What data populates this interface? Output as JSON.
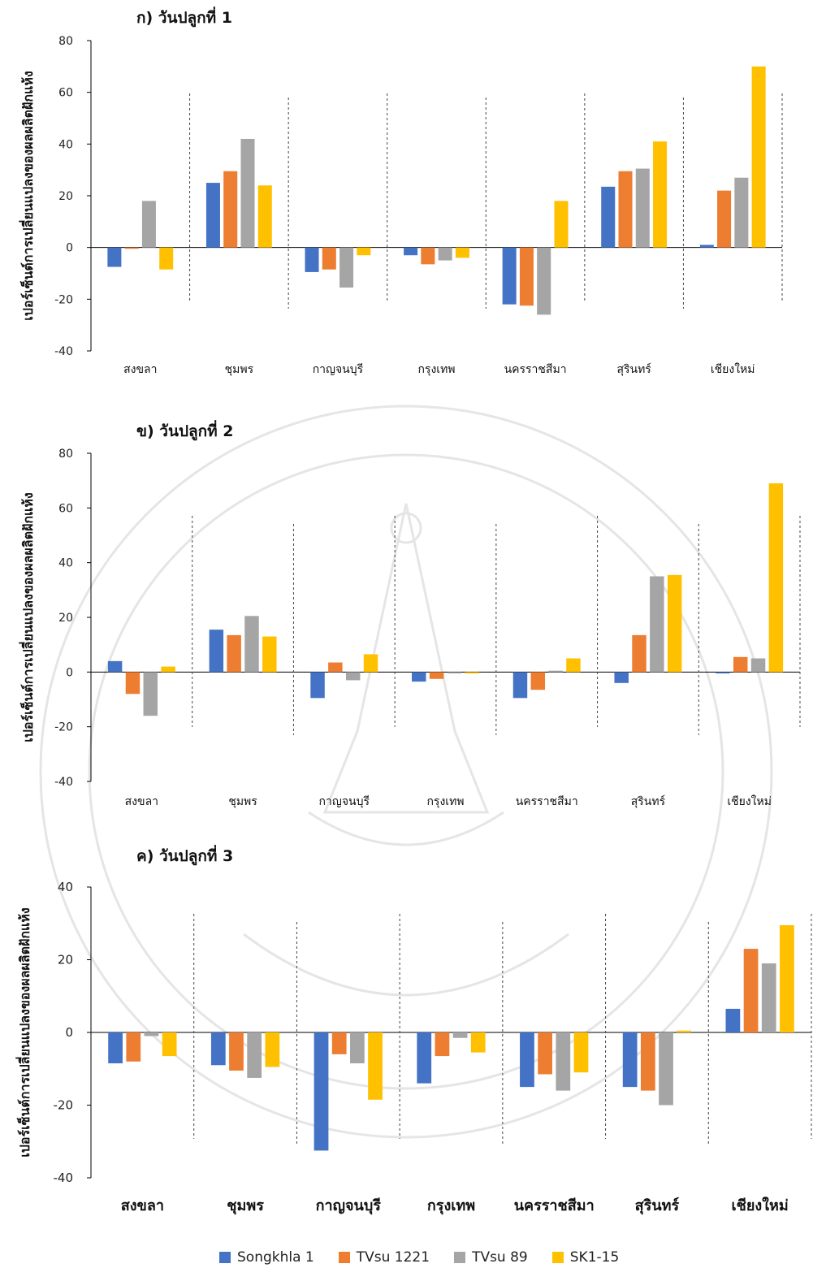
{
  "chart_data": [
    {
      "type": "bar",
      "title": "ก) วันปลูกที่ 1",
      "ylabel": "เปอร์เซ็นต์การเปลี่ยนแปลงของผลผลิตฝักแห้ง",
      "ylim": [
        -40,
        80
      ],
      "yticks": [
        80,
        60,
        40,
        20,
        0,
        -20,
        -40
      ],
      "categories": [
        "สงขลา",
        "ชุมพร",
        "กาญจนบุรี",
        "กรุงเทพ",
        "นครราชสีมา",
        "สุรินทร์",
        "เชียงใหม่"
      ],
      "series": [
        {
          "name": "Songkhla 1",
          "values": [
            -7.5,
            25,
            -9.5,
            -3,
            -22,
            23.5,
            1
          ]
        },
        {
          "name": "TVsu 1221",
          "values": [
            -0.5,
            29.5,
            -8.5,
            -6.5,
            -22.5,
            29.5,
            22
          ]
        },
        {
          "name": "TVsu 89",
          "values": [
            18,
            42,
            -15.5,
            -5,
            -26,
            30.5,
            27
          ]
        },
        {
          "name": "SK1-15",
          "values": [
            -8.5,
            24,
            -3,
            -4,
            18,
            41,
            70
          ]
        }
      ]
    },
    {
      "type": "bar",
      "title": "ข) วันปลูกที่ 2",
      "ylabel": "เปอร์เซ็นต์การเปลี่ยนแปลงของผลผลิตฝักแห้ง",
      "ylim": [
        -40,
        80
      ],
      "yticks": [
        80,
        60,
        40,
        20,
        0,
        -20,
        -40
      ],
      "categories": [
        "สงขลา",
        "ชุมพร",
        "กาญจนบุรี",
        "กรุงเทพ",
        "นครราชสีมา",
        "สุรินทร์",
        "เชียงใหม่"
      ],
      "series": [
        {
          "name": "Songkhla 1",
          "values": [
            4,
            15.5,
            -9.5,
            -3.5,
            -9.5,
            -4,
            -0.5
          ]
        },
        {
          "name": "TVsu 1221",
          "values": [
            -8,
            13.5,
            3.5,
            -2.5,
            -6.5,
            13.5,
            5.5
          ]
        },
        {
          "name": "TVsu 89",
          "values": [
            -16,
            20.5,
            -3,
            -0.5,
            0.5,
            35,
            5
          ]
        },
        {
          "name": "SK1-15",
          "values": [
            2,
            13,
            6.5,
            -0.5,
            5,
            35.5,
            69
          ]
        }
      ]
    },
    {
      "type": "bar",
      "title": "ค) วันปลูกที่ 3",
      "ylabel": "เปอร์เซ็นต์การเปลี่ยนแปลงของผลผลิตฝักแห้ง",
      "ylim": [
        -40,
        40
      ],
      "yticks": [
        40,
        20,
        0,
        -20,
        -40
      ],
      "categories": [
        "สงขลา",
        "ชุมพร",
        "กาญจนบุรี",
        "กรุงเทพ",
        "นครราชสีมา",
        "สุรินทร์",
        "เชียงใหม่"
      ],
      "series": [
        {
          "name": "Songkhla 1",
          "values": [
            -8.5,
            -9,
            -32.5,
            -14,
            -15,
            -15,
            6.5
          ]
        },
        {
          "name": "TVsu 1221",
          "values": [
            -8,
            -10.5,
            -6,
            -6.5,
            -11.5,
            -16,
            23
          ]
        },
        {
          "name": "TVsu 89",
          "values": [
            -1,
            -12.5,
            -8.5,
            -1.5,
            -16,
            -20,
            19
          ]
        },
        {
          "name": "SK1-15",
          "values": [
            -6.5,
            -9.5,
            -18.5,
            -5.5,
            -11,
            0.5,
            29.5
          ]
        }
      ]
    }
  ],
  "legend": [
    {
      "name": "Songkhla 1",
      "color": "#4472C4"
    },
    {
      "name": "TVsu 1221",
      "color": "#ED7D31"
    },
    {
      "name": "TVsu 89",
      "color": "#A5A5A5"
    },
    {
      "name": "SK1-15",
      "color": "#FFC000"
    }
  ]
}
